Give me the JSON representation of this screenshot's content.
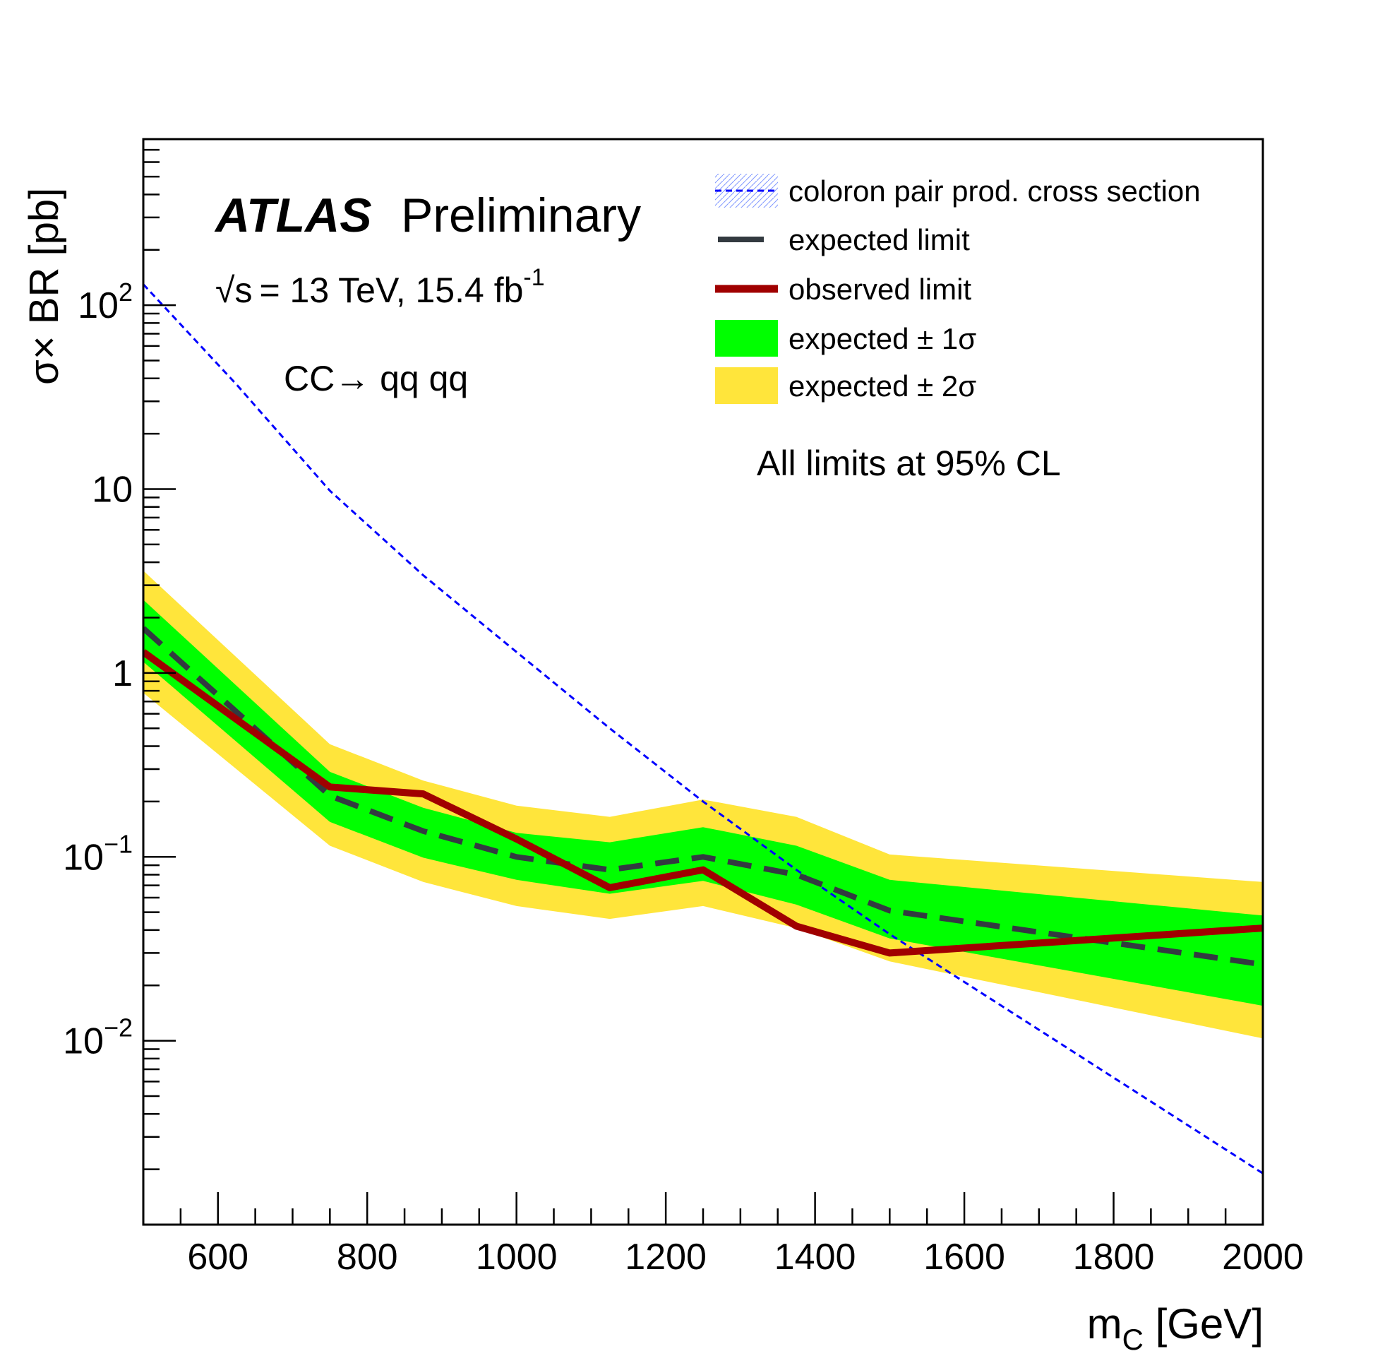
{
  "chart_data": {
    "type": "line",
    "experiment": "ATLAS",
    "status": "Preliminary",
    "energy_prefix": "= 13 TeV, 15.4 fb",
    "energy_sqrt_symbol": "√s",
    "energy_exponent": "-1",
    "process": "CC→ qq qq",
    "cl_note": "All limits at 95% CL",
    "xlabel_main": "m",
    "xlabel_sub": "C",
    "xlabel_unit": "[GeV]",
    "ylabel": "σ× BR [pb]",
    "xlim": [
      500,
      2000
    ],
    "ylim": [
      0.001,
      800
    ],
    "yscale": "log",
    "x_ticks": [
      600,
      800,
      1000,
      1200,
      1400,
      1600,
      1800,
      2000
    ],
    "x_tick_labels": [
      "600",
      "800",
      "1000",
      "1200",
      "1400",
      "1600",
      "1800",
      "2000"
    ],
    "y_tick_labels": [
      {
        "value": 0.01,
        "base": "10",
        "exp": "−2"
      },
      {
        "value": 0.1,
        "base": "10",
        "exp": "−1"
      },
      {
        "value": 1,
        "base": "1",
        "exp": ""
      },
      {
        "value": 10,
        "base": "10",
        "exp": ""
      },
      {
        "value": 100,
        "base": "10",
        "exp": "2"
      }
    ],
    "x": [
      500,
      750,
      875,
      1000,
      1125,
      1250,
      1375,
      1500,
      2000
    ],
    "legend": {
      "position": "top-right",
      "entries": [
        {
          "label": "coloron pair prod. cross section",
          "style": "theory"
        },
        {
          "label": "expected limit",
          "style": "expected"
        },
        {
          "label": "observed limit",
          "style": "observed"
        },
        {
          "label": "expected ± 1σ",
          "style": "band1"
        },
        {
          "label": "expected ± 2σ",
          "style": "band2"
        }
      ]
    },
    "series": [
      {
        "name": "expected ± 2σ",
        "kind": "band",
        "color": "#ffe53b",
        "lower": [
          0.78,
          0.115,
          0.073,
          0.054,
          0.046,
          0.054,
          0.041,
          0.027,
          0.0103
        ],
        "upper": [
          3.6,
          0.41,
          0.26,
          0.19,
          0.165,
          0.205,
          0.165,
          0.103,
          0.073
        ]
      },
      {
        "name": "expected ± 1σ",
        "kind": "band",
        "color": "#00ff00",
        "lower": [
          1.15,
          0.155,
          0.099,
          0.075,
          0.063,
          0.074,
          0.055,
          0.036,
          0.0155
        ],
        "upper": [
          2.5,
          0.29,
          0.185,
          0.135,
          0.12,
          0.145,
          0.115,
          0.075,
          0.048
        ]
      },
      {
        "name": "coloron pair prod. cross section",
        "kind": "line",
        "color": "#0000ff",
        "x": [
          500,
          625,
          750,
          875,
          1000,
          1125,
          1250,
          1375,
          1500,
          1750,
          2000
        ],
        "y": [
          130,
          37,
          9.8,
          3.4,
          1.3,
          0.5,
          0.2,
          0.085,
          0.038,
          0.0085,
          0.0019
        ]
      },
      {
        "name": "expected limit",
        "kind": "line",
        "color": "#333a40",
        "y": [
          1.75,
          0.215,
          0.138,
          0.1,
          0.085,
          0.1,
          0.08,
          0.051,
          0.026
        ]
      },
      {
        "name": "observed limit",
        "kind": "line",
        "color": "#a00000",
        "y": [
          1.3,
          0.24,
          0.22,
          0.125,
          0.068,
          0.085,
          0.042,
          0.03,
          0.041
        ]
      }
    ]
  }
}
